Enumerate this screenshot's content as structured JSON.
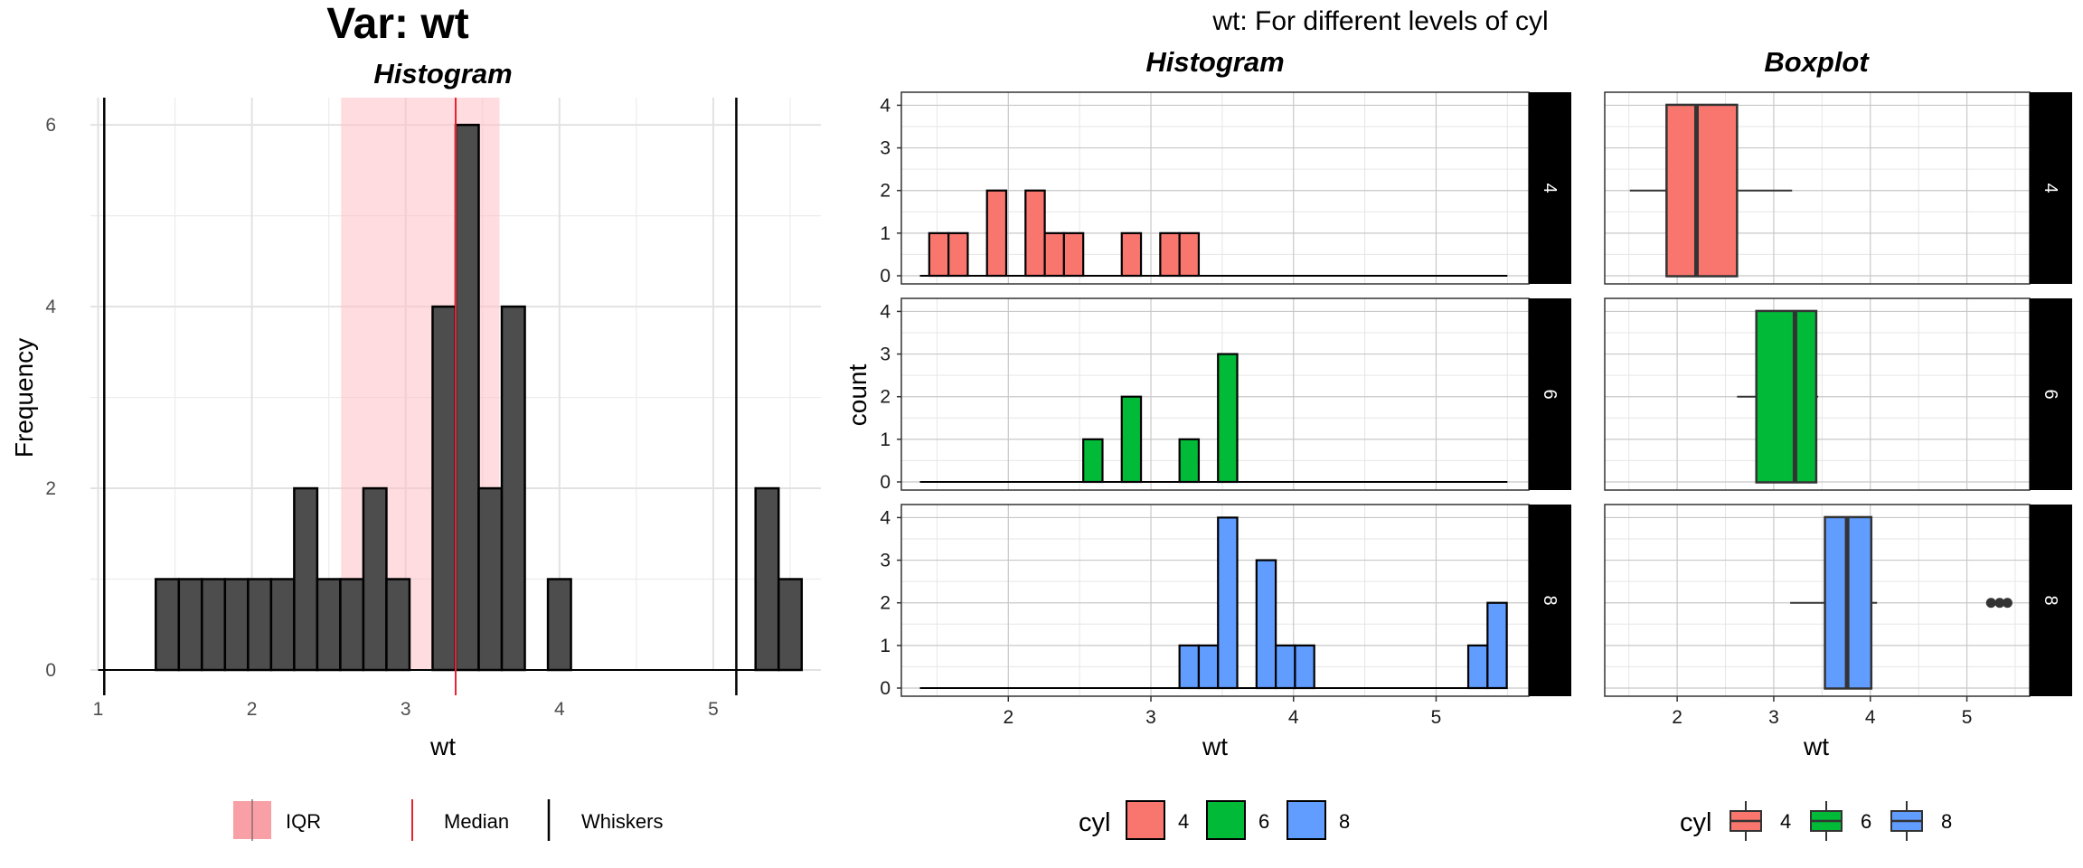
{
  "main_title": "Var: wt",
  "super_title": "wt: For different levels of cyl",
  "left_panel": {
    "subtitle": "Histogram",
    "xlabel": "wt",
    "ylabel": "Frequency",
    "x_ticks": [
      "1",
      "2",
      "3",
      "4",
      "5"
    ],
    "y_ticks": [
      "0",
      "2",
      "4",
      "6"
    ],
    "legend": {
      "iqr": "IQR",
      "median": "Median",
      "whiskers": "Whiskers"
    }
  },
  "right_panels": {
    "histogram_subtitle": "Histogram",
    "boxplot_subtitle": "Boxplot",
    "hist_xlabel": "wt",
    "hist_ylabel": "count",
    "box_xlabel": "wt",
    "x_ticks": [
      "2",
      "3",
      "4",
      "5"
    ],
    "y_ticks": [
      "0",
      "1",
      "2",
      "3",
      "4"
    ],
    "strips": [
      "4",
      "6",
      "8"
    ],
    "legend_title_hist": "cyl",
    "legend_title_box": "cyl",
    "legend_labels": [
      "4",
      "6",
      "8"
    ]
  },
  "colors": {
    "cyl4": "#F8766D",
    "cyl6": "#00BA38",
    "cyl8": "#619CFF",
    "hist_bar": "#4d4d4d",
    "iqr_fill": "#FFC0C5",
    "median": "#E8232F"
  },
  "chart_data": [
    {
      "type": "bar",
      "title": "Var: wt",
      "subtitle": "Histogram",
      "xlabel": "wt",
      "ylabel": "Frequency",
      "xlim": [
        0.95,
        5.7
      ],
      "ylim": [
        0,
        6.3
      ],
      "bins": [
        {
          "x": 1.45,
          "count": 1
        },
        {
          "x": 1.6,
          "count": 1
        },
        {
          "x": 1.75,
          "count": 1
        },
        {
          "x": 1.9,
          "count": 1
        },
        {
          "x": 2.05,
          "count": 1
        },
        {
          "x": 2.2,
          "count": 1
        },
        {
          "x": 2.35,
          "count": 2
        },
        {
          "x": 2.5,
          "count": 1
        },
        {
          "x": 2.65,
          "count": 1
        },
        {
          "x": 2.8,
          "count": 2
        },
        {
          "x": 2.95,
          "count": 1
        },
        {
          "x": 3.25,
          "count": 4
        },
        {
          "x": 3.4,
          "count": 6
        },
        {
          "x": 3.55,
          "count": 2
        },
        {
          "x": 3.7,
          "count": 4
        },
        {
          "x": 4.0,
          "count": 1
        },
        {
          "x": 5.35,
          "count": 2
        },
        {
          "x": 5.5,
          "count": 1
        }
      ],
      "bin_width": 0.15,
      "iqr": [
        2.58,
        3.61
      ],
      "median": 3.325,
      "whiskers": [
        1.04,
        5.15
      ]
    },
    {
      "type": "bar",
      "title": "wt: For different levels of cyl",
      "subtitle": "Histogram",
      "xlabel": "wt",
      "ylabel": "count",
      "xlim": [
        1.25,
        5.65
      ],
      "ylim": [
        0,
        4.2
      ],
      "bin_width": 0.135,
      "series": [
        {
          "name": "4",
          "bins": [
            {
              "x": 1.513,
              "count": 1
            },
            {
              "x": 1.648,
              "count": 1
            },
            {
              "x": 1.918,
              "count": 2
            },
            {
              "x": 2.188,
              "count": 2
            },
            {
              "x": 2.323,
              "count": 1
            },
            {
              "x": 2.458,
              "count": 1
            },
            {
              "x": 2.863,
              "count": 1
            },
            {
              "x": 3.133,
              "count": 1
            },
            {
              "x": 3.268,
              "count": 1
            }
          ]
        },
        {
          "name": "6",
          "bins": [
            {
              "x": 2.593,
              "count": 1
            },
            {
              "x": 2.863,
              "count": 2
            },
            {
              "x": 3.268,
              "count": 1
            },
            {
              "x": 3.538,
              "count": 3
            }
          ]
        },
        {
          "name": "8",
          "bins": [
            {
              "x": 3.268,
              "count": 1
            },
            {
              "x": 3.403,
              "count": 1
            },
            {
              "x": 3.538,
              "count": 4
            },
            {
              "x": 3.808,
              "count": 3
            },
            {
              "x": 3.943,
              "count": 1
            },
            {
              "x": 4.078,
              "count": 1
            },
            {
              "x": 5.293,
              "count": 1
            },
            {
              "x": 5.428,
              "count": 2
            }
          ]
        }
      ]
    },
    {
      "type": "boxplot",
      "subtitle": "Boxplot",
      "xlabel": "wt",
      "xlim": [
        1.25,
        5.65
      ],
      "series": [
        {
          "name": "4",
          "whisker_low": 1.51,
          "q1": 1.89,
          "median": 2.2,
          "q3": 2.62,
          "whisker_high": 3.19,
          "outliers": []
        },
        {
          "name": "6",
          "whisker_low": 2.62,
          "q1": 2.82,
          "median": 3.22,
          "q3": 3.44,
          "whisker_high": 3.46,
          "outliers": []
        },
        {
          "name": "8",
          "whisker_low": 3.17,
          "q1": 3.53,
          "median": 3.76,
          "q3": 4.01,
          "whisker_high": 4.07,
          "outliers": [
            5.25,
            5.34,
            5.42
          ]
        }
      ]
    }
  ]
}
